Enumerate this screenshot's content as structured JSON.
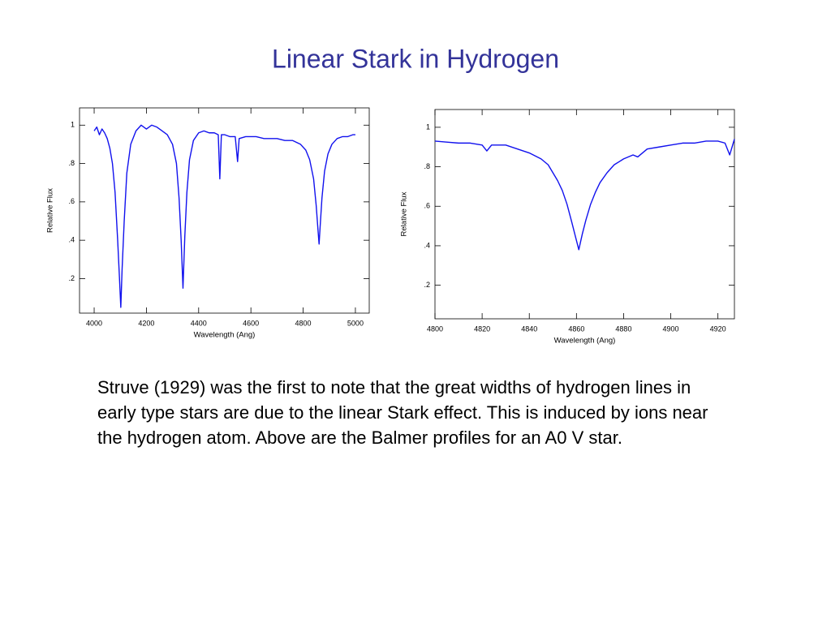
{
  "title": "Linear Stark in Hydrogen",
  "body": "Struve (1929) was the first to note that the great widths of hydrogen lines in early type stars are due to the linear Stark effect. This is induced by ions near the hydrogen atom. Above are the Balmer profiles for an A0 V star.",
  "chart_data": [
    {
      "type": "line",
      "xlabel": "Wavelength (Ang)",
      "ylabel": "Relative Flux",
      "color": "#1111ee",
      "xlim": [
        3944,
        5053
      ],
      "ylim": [
        0.02,
        1.09
      ],
      "xticks": [
        4000,
        4200,
        4400,
        4600,
        4800,
        5000
      ],
      "yticks": [
        {
          "value": 0.2,
          "label": ".2"
        },
        {
          "value": 0.4,
          "label": ".4"
        },
        {
          "value": 0.6,
          "label": ".6"
        },
        {
          "value": 0.8,
          "label": ".8"
        },
        1
      ],
      "x": [
        4000,
        4010,
        4020,
        4030,
        4040,
        4050,
        4060,
        4070,
        4080,
        4090,
        4097,
        4102,
        4107,
        4115,
        4125,
        4140,
        4160,
        4180,
        4200,
        4220,
        4240,
        4260,
        4280,
        4300,
        4315,
        4325,
        4333,
        4340,
        4347,
        4355,
        4365,
        4380,
        4400,
        4420,
        4440,
        4460,
        4475,
        4481,
        4487,
        4500,
        4520,
        4540,
        4549,
        4555,
        4580,
        4600,
        4620,
        4650,
        4680,
        4700,
        4730,
        4760,
        4790,
        4810,
        4825,
        4840,
        4850,
        4857,
        4861,
        4865,
        4872,
        4882,
        4895,
        4910,
        4930,
        4950,
        4970,
        4990,
        5000
      ],
      "values": [
        0.97,
        0.99,
        0.95,
        0.98,
        0.96,
        0.93,
        0.88,
        0.8,
        0.65,
        0.4,
        0.2,
        0.05,
        0.25,
        0.5,
        0.75,
        0.9,
        0.97,
        1.0,
        0.98,
        1.0,
        0.99,
        0.97,
        0.95,
        0.9,
        0.8,
        0.62,
        0.4,
        0.15,
        0.42,
        0.65,
        0.82,
        0.92,
        0.96,
        0.97,
        0.96,
        0.96,
        0.95,
        0.72,
        0.95,
        0.95,
        0.94,
        0.94,
        0.81,
        0.93,
        0.94,
        0.94,
        0.94,
        0.93,
        0.93,
        0.93,
        0.92,
        0.92,
        0.9,
        0.87,
        0.82,
        0.72,
        0.58,
        0.45,
        0.38,
        0.47,
        0.62,
        0.76,
        0.85,
        0.9,
        0.93,
        0.94,
        0.94,
        0.95,
        0.95
      ]
    },
    {
      "type": "line",
      "xlabel": "Wavelength (Ang)",
      "ylabel": "Relative Flux",
      "color": "#1111ee",
      "xlim": [
        4800,
        4927
      ],
      "ylim": [
        0.03,
        1.09
      ],
      "xticks": [
        4800,
        4820,
        4840,
        4860,
        4880,
        4900,
        4920
      ],
      "yticks": [
        {
          "value": 0.2,
          "label": ".2"
        },
        {
          "value": 0.4,
          "label": ".4"
        },
        {
          "value": 0.6,
          "label": ".6"
        },
        {
          "value": 0.8,
          "label": ".8"
        },
        1
      ],
      "x": [
        4800,
        4805,
        4810,
        4815,
        4820,
        4822,
        4824,
        4830,
        4835,
        4840,
        4845,
        4848,
        4850,
        4852,
        4854,
        4856,
        4858,
        4859.5,
        4861,
        4862.5,
        4864,
        4866,
        4868,
        4870,
        4873,
        4876,
        4880,
        4884,
        4886,
        4890,
        4895,
        4900,
        4905,
        4910,
        4915,
        4920,
        4923,
        4925,
        4927
      ],
      "values": [
        0.93,
        0.925,
        0.92,
        0.92,
        0.91,
        0.88,
        0.91,
        0.91,
        0.89,
        0.87,
        0.84,
        0.81,
        0.77,
        0.73,
        0.68,
        0.61,
        0.52,
        0.45,
        0.38,
        0.46,
        0.53,
        0.61,
        0.67,
        0.72,
        0.77,
        0.81,
        0.84,
        0.86,
        0.85,
        0.89,
        0.9,
        0.91,
        0.92,
        0.92,
        0.93,
        0.93,
        0.92,
        0.86,
        0.94
      ]
    }
  ]
}
